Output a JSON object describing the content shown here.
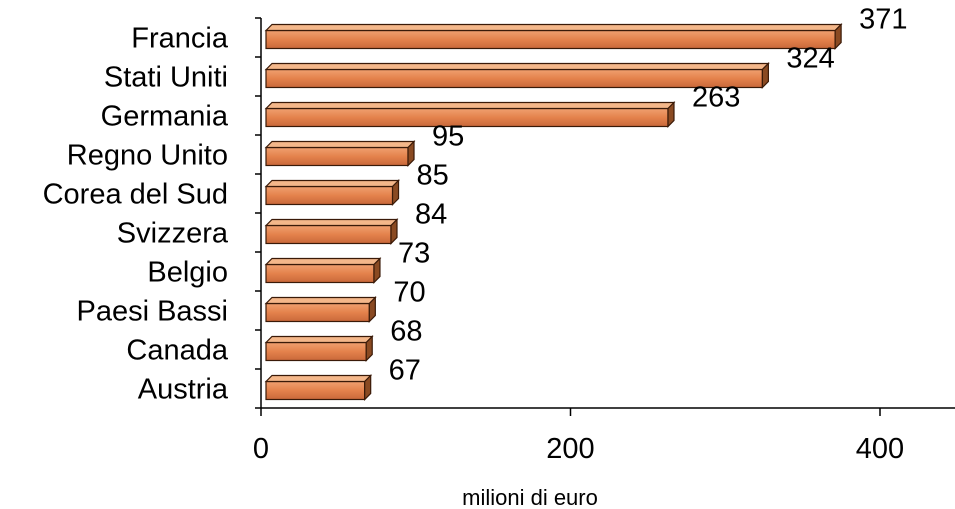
{
  "chart_data": {
    "type": "bar",
    "orientation": "horizontal",
    "categories": [
      "Francia",
      "Stati Uniti",
      "Germania",
      "Regno Unito",
      "Corea del Sud",
      "Svizzera",
      "Belgio",
      "Paesi Bassi",
      "Canada",
      "Austria"
    ],
    "values": [
      371,
      324,
      263,
      95,
      85,
      84,
      73,
      70,
      68,
      67
    ],
    "xlabel": "milioni di euro",
    "ylabel": "",
    "xlim": [
      0,
      450
    ],
    "xticks": [
      0,
      200,
      400
    ],
    "data_labels": [
      "371",
      "324",
      "263",
      "95",
      "85",
      "84",
      "73",
      "70",
      "68",
      "67"
    ],
    "grid": false,
    "legend": "none",
    "colors": {
      "bar_front": "#e6844f",
      "bar_front_light": "#f2a06c",
      "bar_top": "#f4b78a",
      "bar_side": "#8a4a22",
      "bar_outline": "#3a1a08"
    }
  }
}
